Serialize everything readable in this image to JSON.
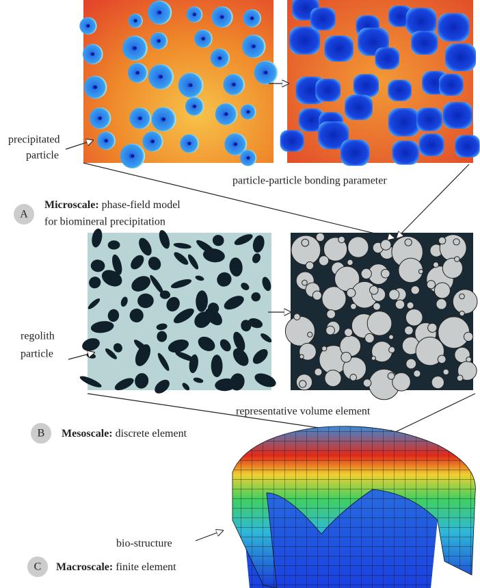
{
  "annotations": {
    "precipitated_particle": [
      "precipitated",
      "particle"
    ],
    "bonding_parameter": "particle-particle bonding parameter",
    "regolith_particle": [
      "regolith",
      "particle"
    ],
    "representative_volume_element": "representative volume element",
    "bio_structure": "bio-structure"
  },
  "scales": [
    {
      "letter": "A",
      "name": "Microscale:",
      "description": [
        "phase-field model",
        "for biomineral precipitation"
      ]
    },
    {
      "letter": "B",
      "name": "Mesoscale:",
      "description": [
        "discrete element"
      ]
    },
    {
      "letter": "C",
      "name": "Macroscale:",
      "description": [
        "finite element"
      ]
    }
  ]
}
